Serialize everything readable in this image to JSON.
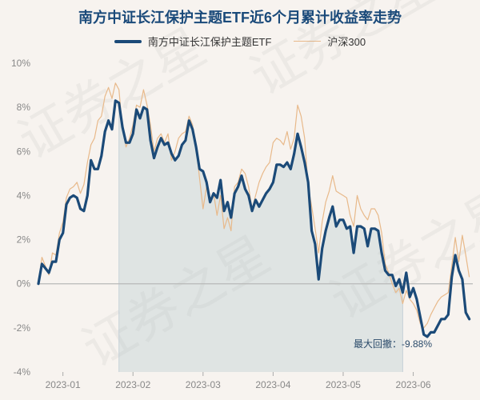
{
  "chart_data": {
    "type": "area",
    "title": "南方中证长江保护主题ETF近6个月累计收益率走势",
    "xlabel": "",
    "ylabel": "",
    "ylim": [
      -4,
      10
    ],
    "y_ticks": [
      "-4%",
      "-2%",
      "0%",
      "2%",
      "4%",
      "6%",
      "8%",
      "10%"
    ],
    "y_tick_values": [
      -4,
      -2,
      0,
      2,
      4,
      6,
      8,
      10
    ],
    "x_ticks": [
      "2023-01",
      "2023-02",
      "2023-03",
      "2023-04",
      "2023-05",
      "2023-06"
    ],
    "x_tick_positions": [
      7,
      27,
      47,
      67,
      87,
      107
    ],
    "x_range": [
      0,
      124
    ],
    "grid": false,
    "legend_position": "top",
    "shade_start_index": 23,
    "shade_end_index": 104,
    "annotation": "最大回撤：-9.88%",
    "series": [
      {
        "name": "南方中证长江保护主题ETF",
        "color": "#1b4a78",
        "values": [
          0.0,
          0.9,
          0.7,
          0.5,
          1.0,
          1.0,
          2.0,
          2.3,
          3.6,
          3.9,
          4.0,
          3.9,
          3.4,
          3.3,
          4.0,
          5.6,
          5.2,
          5.2,
          5.8,
          6.9,
          7.4,
          7.0,
          8.3,
          8.2,
          7.1,
          6.4,
          6.4,
          6.8,
          7.9,
          7.5,
          8.0,
          7.9,
          6.5,
          5.7,
          6.2,
          6.6,
          6.3,
          6.4,
          5.9,
          5.6,
          5.8,
          6.3,
          6.5,
          7.4,
          7.0,
          6.2,
          5.2,
          5.1,
          4.6,
          3.7,
          4.1,
          3.9,
          4.7,
          3.3,
          3.7,
          3.0,
          4.1,
          4.4,
          4.9,
          4.3,
          4.0,
          3.3,
          3.8,
          3.5,
          3.8,
          4.1,
          4.3,
          4.6,
          5.4,
          5.4,
          5.3,
          5.5,
          5.2,
          5.9,
          6.8,
          6.2,
          5.5,
          4.6,
          2.4,
          1.8,
          0.2,
          1.6,
          2.4,
          3.0,
          3.5,
          2.6,
          2.9,
          2.9,
          2.5,
          2.6,
          1.4,
          2.6,
          2.6,
          2.5,
          1.7,
          2.5,
          2.5,
          2.4,
          1.4,
          0.6,
          0.4,
          0.4,
          -0.1,
          0.2,
          -0.4,
          0.5,
          -0.6,
          -0.2,
          -0.7,
          -1.5,
          -2.3,
          -2.4,
          -2.2,
          -2.2,
          -1.9,
          -1.6,
          -1.6,
          -1.4,
          0.3,
          1.3,
          0.6,
          0.2,
          -1.3,
          -1.6
        ]
      },
      {
        "name": "沪深300",
        "color": "#e8b98a",
        "values": [
          0.0,
          1.2,
          0.8,
          0.4,
          1.4,
          1.3,
          2.3,
          2.8,
          3.9,
          4.3,
          4.4,
          4.6,
          4.1,
          4.5,
          5.5,
          6.3,
          6.6,
          7.4,
          7.6,
          8.5,
          8.9,
          8.4,
          9.1,
          8.8,
          7.0,
          6.2,
          6.6,
          7.2,
          8.1,
          8.0,
          8.8,
          8.1,
          7.2,
          6.0,
          6.6,
          6.8,
          6.4,
          6.8,
          5.6,
          6.0,
          6.6,
          6.8,
          6.9,
          7.6,
          7.2,
          6.2,
          4.8,
          3.4,
          4.4,
          3.8,
          4.1,
          3.1,
          4.0,
          2.5,
          3.0,
          2.4,
          4.4,
          4.6,
          5.2,
          5.0,
          4.4,
          3.4,
          4.0,
          4.6,
          5.0,
          5.3,
          5.5,
          6.4,
          6.6,
          6.5,
          6.3,
          6.9,
          6.1,
          6.6,
          8.1,
          7.6,
          6.6,
          4.4,
          3.5,
          2.5,
          1.4,
          2.8,
          3.7,
          4.2,
          4.9,
          4.2,
          4.1,
          4.0,
          3.9,
          3.1,
          2.6,
          4.0,
          3.4,
          3.1,
          2.9,
          3.4,
          3.4,
          3.1,
          2.3,
          0.9,
          0.5,
          0.0,
          -0.4,
          -0.2,
          -0.9,
          -0.3,
          -0.7,
          -0.9,
          -1.2,
          -1.8,
          -2.0,
          -1.8,
          -1.4,
          -1.1,
          -0.8,
          -0.6,
          -0.5,
          -0.4,
          0.8,
          2.1,
          1.0,
          2.2,
          1.3,
          0.3
        ]
      }
    ]
  },
  "watermark": "证券之星",
  "colors": {
    "background": "#f7f3ef",
    "fill": "rgba(176,196,204,0.33)",
    "zero_line": "#b8b8b8",
    "axis_text": "#888888"
  }
}
